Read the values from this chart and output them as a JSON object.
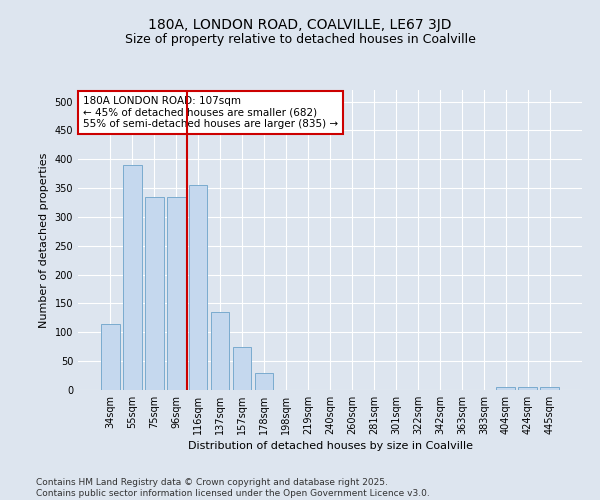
{
  "title1": "180A, LONDON ROAD, COALVILLE, LE67 3JD",
  "title2": "Size of property relative to detached houses in Coalville",
  "xlabel": "Distribution of detached houses by size in Coalville",
  "ylabel": "Number of detached properties",
  "categories": [
    "34sqm",
    "55sqm",
    "75sqm",
    "96sqm",
    "116sqm",
    "137sqm",
    "157sqm",
    "178sqm",
    "198sqm",
    "219sqm",
    "240sqm",
    "260sqm",
    "281sqm",
    "301sqm",
    "322sqm",
    "342sqm",
    "363sqm",
    "383sqm",
    "404sqm",
    "424sqm",
    "445sqm"
  ],
  "values": [
    115,
    390,
    335,
    335,
    355,
    135,
    75,
    30,
    0,
    0,
    0,
    0,
    0,
    0,
    0,
    0,
    0,
    0,
    5,
    5,
    5
  ],
  "bar_color": "#c5d8ee",
  "bar_edge_color": "#7aabcf",
  "vline_x": 3.5,
  "vline_color": "#cc0000",
  "annotation_text": "180A LONDON ROAD: 107sqm\n← 45% of detached houses are smaller (682)\n55% of semi-detached houses are larger (835) →",
  "annotation_box_color": "#ffffff",
  "annotation_box_edge": "#cc0000",
  "ylim": [
    0,
    520
  ],
  "yticks": [
    0,
    50,
    100,
    150,
    200,
    250,
    300,
    350,
    400,
    450,
    500
  ],
  "background_color": "#dde5ef",
  "plot_bg_color": "#dde5ef",
  "grid_color": "#ffffff",
  "footnote": "Contains HM Land Registry data © Crown copyright and database right 2025.\nContains public sector information licensed under the Open Government Licence v3.0.",
  "title_fontsize": 10,
  "subtitle_fontsize": 9,
  "tick_fontsize": 7,
  "label_fontsize": 8,
  "footnote_fontsize": 6.5,
  "annot_fontsize": 7.5
}
